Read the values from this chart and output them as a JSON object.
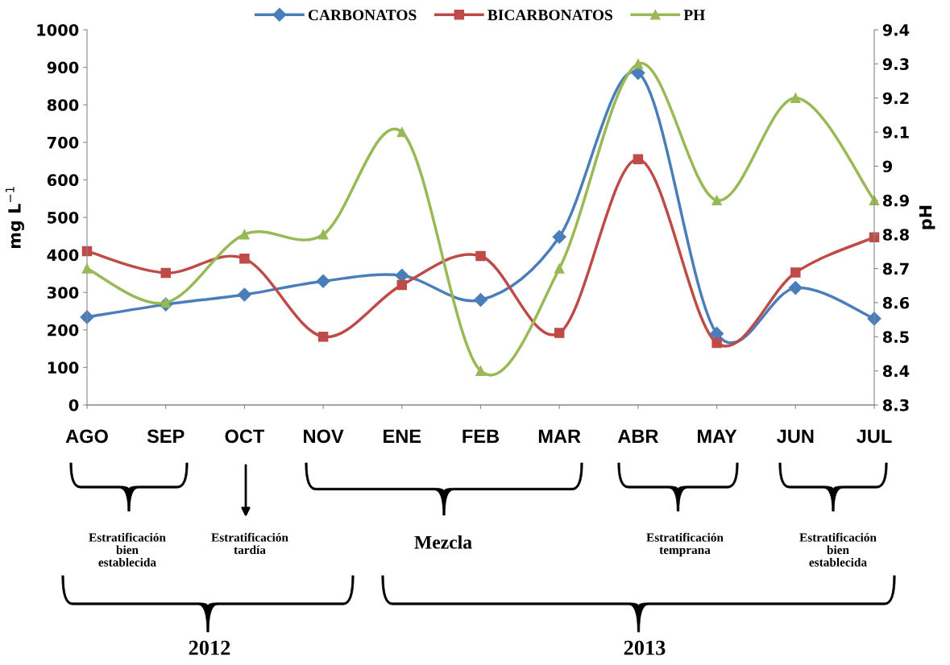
{
  "chart_data": {
    "type": "line",
    "categories": [
      "AGO",
      "SEP",
      "OCT",
      "NOV",
      "ENE",
      "FEB",
      "MAR",
      "ABR",
      "MAY",
      "JUN",
      "JUL"
    ],
    "series": [
      {
        "name": "CARBONATOS",
        "color": "#4a7ebb",
        "marker": "diamond",
        "values": [
          234,
          268,
          294,
          330,
          345,
          280,
          448,
          885,
          190,
          312,
          230
        ]
      },
      {
        "name": "BICARBONATOS",
        "color": "#be4b48",
        "marker": "square",
        "values": [
          410,
          352,
          390,
          182,
          320,
          397,
          192,
          655,
          165,
          353,
          447
        ]
      },
      {
        "name": "PH",
        "color": "#98b954",
        "marker": "triangle",
        "axis": "y2",
        "values": [
          8.7,
          8.6,
          8.8,
          8.8,
          9.1,
          8.4,
          8.7,
          9.3,
          8.9,
          9.2,
          8.9
        ]
      }
    ],
    "ylabel": "mg L$^{−1}$",
    "y2label": "pH",
    "ylim": [
      0,
      1000
    ],
    "yticks": [
      0,
      100,
      200,
      300,
      400,
      500,
      600,
      700,
      800,
      900,
      1000
    ],
    "y2lim": [
      8.3,
      9.4
    ],
    "y2ticks": [
      {
        "value": 8.3,
        "label": "8.3"
      },
      {
        "value": 8.4,
        "label": "8.4"
      },
      {
        "value": 8.5,
        "label": "8.5"
      },
      {
        "value": 8.6,
        "label": "8.6"
      },
      {
        "value": 8.7,
        "label": "8.7"
      },
      {
        "value": 8.8,
        "label": "8.8"
      },
      {
        "value": 8.9,
        "label": "8.9"
      },
      {
        "value": 9,
        "label": "9"
      },
      {
        "value": 9.1,
        "label": "9.1"
      },
      {
        "value": 9.2,
        "label": "9.2"
      },
      {
        "value": 9.3,
        "label": "9.3"
      },
      {
        "value": 9.4,
        "label": "9.4"
      }
    ],
    "grid": false,
    "legend": "top",
    "line_style": "solid",
    "annotations": [
      "Estratificación\nbien\nestablecida",
      "Estratificación\ntardía",
      "Mezcla",
      "Estratificación\ntemprana",
      "Estratificación\nbien\nestablecida",
      "2012",
      "2013"
    ]
  }
}
